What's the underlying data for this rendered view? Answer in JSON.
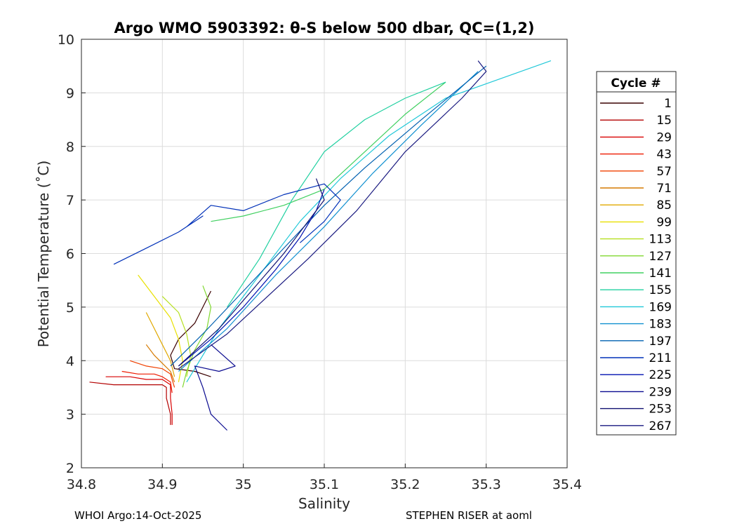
{
  "chart_data": {
    "type": "line",
    "title": "Argo WMO 5903392: θ-S below 500 dbar,  QC=(1,2)",
    "xlabel": "Salinity",
    "ylabel": "Potential Temperature (˚C)",
    "xlim": [
      34.8,
      35.4
    ],
    "ylim": [
      2,
      10
    ],
    "xticks": [
      34.8,
      34.9,
      35,
      35.1,
      35.2,
      35.3,
      35.4
    ],
    "xtick_labels": [
      "34.8",
      "34.9",
      "35",
      "35.1",
      "35.2",
      "35.3",
      "35.4"
    ],
    "yticks": [
      2,
      3,
      4,
      5,
      6,
      7,
      8,
      9,
      10
    ],
    "ytick_labels": [
      "2",
      "3",
      "4",
      "5",
      "6",
      "7",
      "8",
      "9",
      "10"
    ],
    "grid": true,
    "legend": {
      "title": "Cycle #",
      "position": "outside-right",
      "entries": [
        "1",
        "15",
        "29",
        "43",
        "57",
        "71",
        "85",
        "99",
        "113",
        "127",
        "141",
        "155",
        "169",
        "183",
        "197",
        "211",
        "225",
        "239",
        "253",
        "267"
      ],
      "colors": [
        "#3a0000",
        "#b30000",
        "#d90000",
        "#ee1a00",
        "#f04000",
        "#d67a00",
        "#e0a800",
        "#e8e000",
        "#b6e020",
        "#80d830",
        "#40d060",
        "#20d0a0",
        "#20c8d8",
        "#1090d0",
        "#0060b0",
        "#0030b8",
        "#0010b0",
        "#0a0a90",
        "#101070",
        "#1a1a80"
      ]
    },
    "series": [
      {
        "name": "1",
        "color": "#3a0000",
        "points": [
          [
            34.96,
            5.3
          ],
          [
            34.95,
            5.0
          ],
          [
            34.94,
            4.7
          ],
          [
            34.92,
            4.4
          ],
          [
            34.91,
            4.1
          ],
          [
            34.915,
            3.85
          ],
          [
            34.94,
            3.8
          ],
          [
            34.96,
            3.7
          ]
        ]
      },
      {
        "name": "15",
        "color": "#b30000",
        "points": [
          [
            34.81,
            3.6
          ],
          [
            34.84,
            3.55
          ],
          [
            34.87,
            3.55
          ],
          [
            34.9,
            3.55
          ],
          [
            34.905,
            3.5
          ],
          [
            34.905,
            3.3
          ],
          [
            34.91,
            3.0
          ],
          [
            34.91,
            2.8
          ]
        ]
      },
      {
        "name": "29",
        "color": "#d90000",
        "points": [
          [
            34.83,
            3.7
          ],
          [
            34.86,
            3.7
          ],
          [
            34.88,
            3.65
          ],
          [
            34.9,
            3.65
          ],
          [
            34.91,
            3.55
          ],
          [
            34.91,
            3.3
          ],
          [
            34.912,
            3.0
          ],
          [
            34.912,
            2.8
          ]
        ]
      },
      {
        "name": "43",
        "color": "#ee1a00",
        "points": [
          [
            34.85,
            3.8
          ],
          [
            34.87,
            3.75
          ],
          [
            34.89,
            3.75
          ],
          [
            34.9,
            3.7
          ],
          [
            34.91,
            3.6
          ],
          [
            34.912,
            3.4
          ]
        ]
      },
      {
        "name": "57",
        "color": "#f04000",
        "points": [
          [
            34.86,
            4.0
          ],
          [
            34.88,
            3.9
          ],
          [
            34.9,
            3.85
          ],
          [
            34.91,
            3.75
          ],
          [
            34.915,
            3.5
          ]
        ]
      },
      {
        "name": "71",
        "color": "#d67a00",
        "points": [
          [
            34.88,
            4.3
          ],
          [
            34.89,
            4.1
          ],
          [
            34.9,
            3.95
          ],
          [
            34.91,
            3.8
          ],
          [
            34.915,
            3.6
          ]
        ]
      },
      {
        "name": "85",
        "color": "#e0a800",
        "points": [
          [
            34.88,
            4.9
          ],
          [
            34.89,
            4.6
          ],
          [
            34.9,
            4.3
          ],
          [
            34.91,
            4.0
          ],
          [
            34.915,
            3.7
          ]
        ]
      },
      {
        "name": "99",
        "color": "#e8e000",
        "points": [
          [
            34.87,
            5.6
          ],
          [
            34.89,
            5.2
          ],
          [
            34.91,
            4.8
          ],
          [
            34.92,
            4.4
          ],
          [
            34.925,
            4.0
          ],
          [
            34.92,
            3.6
          ]
        ]
      },
      {
        "name": "113",
        "color": "#b6e020",
        "points": [
          [
            34.9,
            5.2
          ],
          [
            34.92,
            4.9
          ],
          [
            34.93,
            4.5
          ],
          [
            34.935,
            4.1
          ],
          [
            34.93,
            3.7
          ]
        ]
      },
      {
        "name": "127",
        "color": "#80d830",
        "points": [
          [
            34.95,
            5.4
          ],
          [
            34.96,
            5.0
          ],
          [
            34.955,
            4.6
          ],
          [
            34.94,
            4.2
          ],
          [
            34.93,
            3.8
          ],
          [
            34.925,
            3.5
          ]
        ]
      },
      {
        "name": "141",
        "color": "#40d060",
        "points": [
          [
            34.96,
            6.6
          ],
          [
            35.0,
            6.7
          ],
          [
            35.05,
            6.9
          ],
          [
            35.1,
            7.2
          ],
          [
            35.15,
            7.9
          ],
          [
            35.2,
            8.6
          ],
          [
            35.25,
            9.2
          ]
        ]
      },
      {
        "name": "155",
        "color": "#20d0a0",
        "points": [
          [
            34.98,
            5.0
          ],
          [
            35.02,
            5.9
          ],
          [
            35.06,
            7.0
          ],
          [
            35.1,
            7.9
          ],
          [
            35.15,
            8.5
          ],
          [
            35.2,
            8.9
          ],
          [
            35.25,
            9.2
          ]
        ]
      },
      {
        "name": "169",
        "color": "#20c8d8",
        "points": [
          [
            34.93,
            3.6
          ],
          [
            34.97,
            4.6
          ],
          [
            35.02,
            5.6
          ],
          [
            35.07,
            6.6
          ],
          [
            35.12,
            7.4
          ],
          [
            35.18,
            8.2
          ],
          [
            35.25,
            8.9
          ],
          [
            35.38,
            9.6
          ]
        ]
      },
      {
        "name": "183",
        "color": "#1090d0",
        "points": [
          [
            34.92,
            3.8
          ],
          [
            34.98,
            4.6
          ],
          [
            35.04,
            5.6
          ],
          [
            35.1,
            6.5
          ],
          [
            35.16,
            7.5
          ],
          [
            35.22,
            8.4
          ],
          [
            35.29,
            9.4
          ]
        ]
      },
      {
        "name": "197",
        "color": "#0060b0",
        "points": [
          [
            34.91,
            3.9
          ],
          [
            34.95,
            4.5
          ],
          [
            35.0,
            5.3
          ],
          [
            35.05,
            6.1
          ],
          [
            35.1,
            6.9
          ],
          [
            35.15,
            7.6
          ],
          [
            35.22,
            8.5
          ],
          [
            35.3,
            9.5
          ]
        ]
      },
      {
        "name": "211",
        "color": "#0030b8",
        "points": [
          [
            34.84,
            5.8
          ],
          [
            34.88,
            6.1
          ],
          [
            34.92,
            6.4
          ],
          [
            34.95,
            6.7
          ],
          [
            34.93,
            6.5
          ],
          [
            34.96,
            6.9
          ],
          [
            35.0,
            6.8
          ],
          [
            35.05,
            7.1
          ],
          [
            35.1,
            7.3
          ],
          [
            35.12,
            7.0
          ],
          [
            35.1,
            6.6
          ],
          [
            35.07,
            6.2
          ]
        ]
      },
      {
        "name": "225",
        "color": "#0010b0",
        "points": [
          [
            34.92,
            3.9
          ],
          [
            34.96,
            4.4
          ],
          [
            35.0,
            5.0
          ],
          [
            35.04,
            5.7
          ],
          [
            35.07,
            6.3
          ],
          [
            35.09,
            6.8
          ],
          [
            35.1,
            7.2
          ]
        ]
      },
      {
        "name": "239",
        "color": "#0a0a90",
        "points": [
          [
            34.98,
            2.7
          ],
          [
            34.96,
            3.0
          ],
          [
            34.95,
            3.5
          ],
          [
            34.94,
            3.9
          ],
          [
            34.97,
            3.8
          ],
          [
            34.99,
            3.9
          ],
          [
            34.96,
            4.3
          ]
        ]
      },
      {
        "name": "253",
        "color": "#101070",
        "points": [
          [
            34.92,
            3.9
          ],
          [
            34.97,
            4.6
          ],
          [
            35.01,
            5.3
          ],
          [
            35.05,
            6.0
          ],
          [
            35.08,
            6.6
          ],
          [
            35.1,
            7.0
          ],
          [
            35.09,
            7.4
          ]
        ]
      },
      {
        "name": "267",
        "color": "#1a1a80",
        "points": [
          [
            34.92,
            3.85
          ],
          [
            34.98,
            4.5
          ],
          [
            35.03,
            5.2
          ],
          [
            35.08,
            5.9
          ],
          [
            35.14,
            6.8
          ],
          [
            35.2,
            7.9
          ],
          [
            35.27,
            8.9
          ],
          [
            35.3,
            9.4
          ],
          [
            35.29,
            9.6
          ]
        ]
      }
    ]
  },
  "footer": {
    "left": "WHOI Argo:14-Oct-2025",
    "right": "STEPHEN RISER at aoml"
  }
}
